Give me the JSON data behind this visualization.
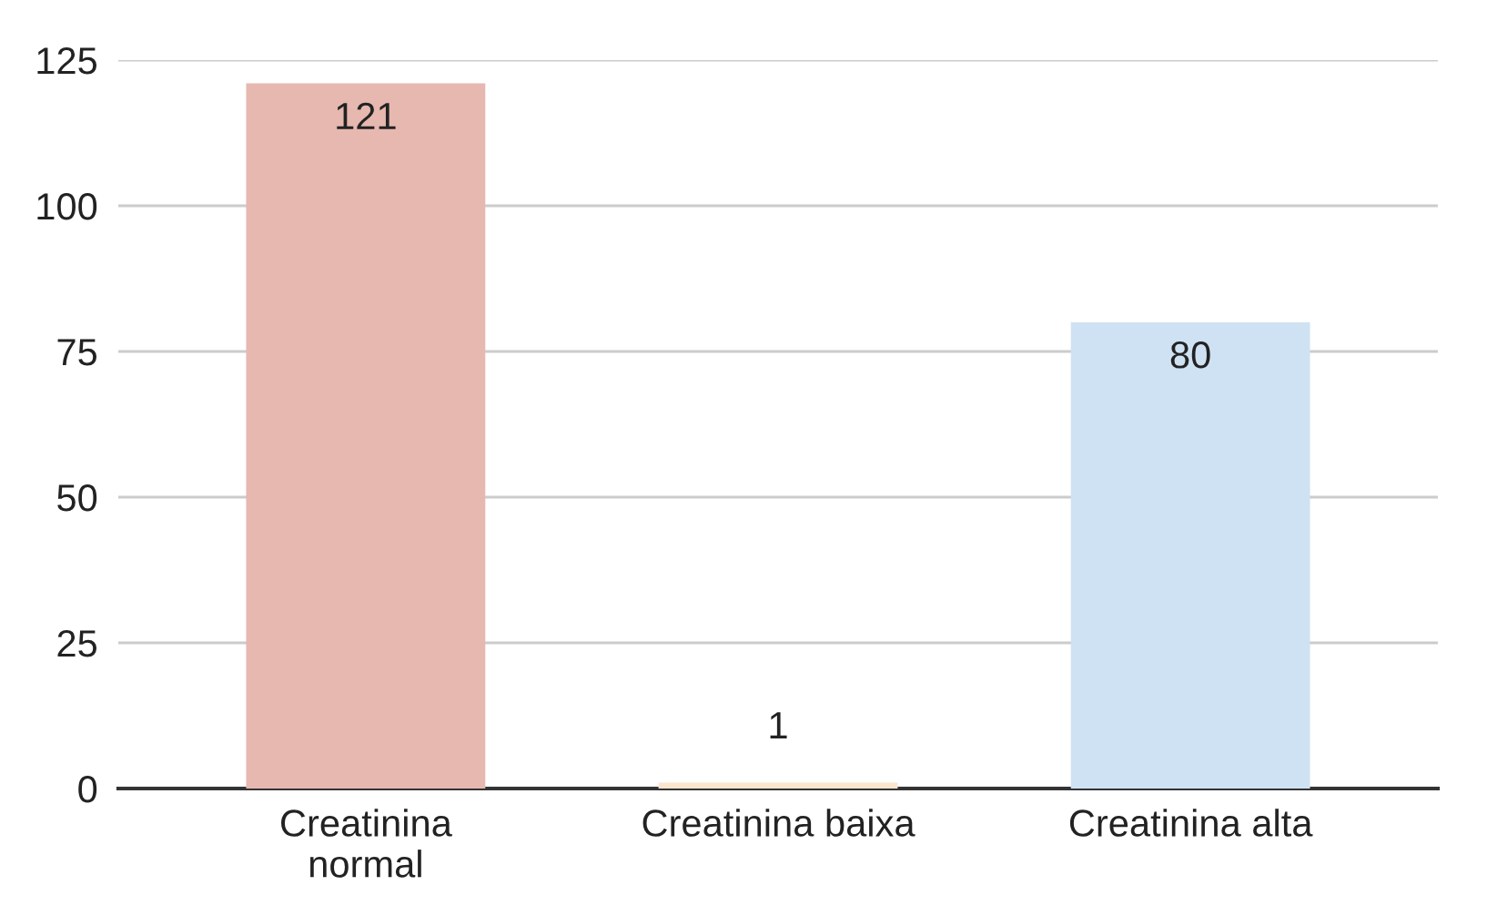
{
  "chart_data": {
    "type": "bar",
    "categories": [
      "Creatinina\nnormal",
      "Creatinina baixa",
      "Creatinina alta"
    ],
    "values": [
      121,
      1,
      80
    ],
    "colors": [
      "#e6b8af",
      "#fce5cd",
      "#cfe2f3"
    ],
    "ylim": [
      0,
      125
    ],
    "yticks": [
      0,
      25,
      50,
      75,
      100,
      125
    ],
    "grid": "y",
    "data_labels": true
  }
}
